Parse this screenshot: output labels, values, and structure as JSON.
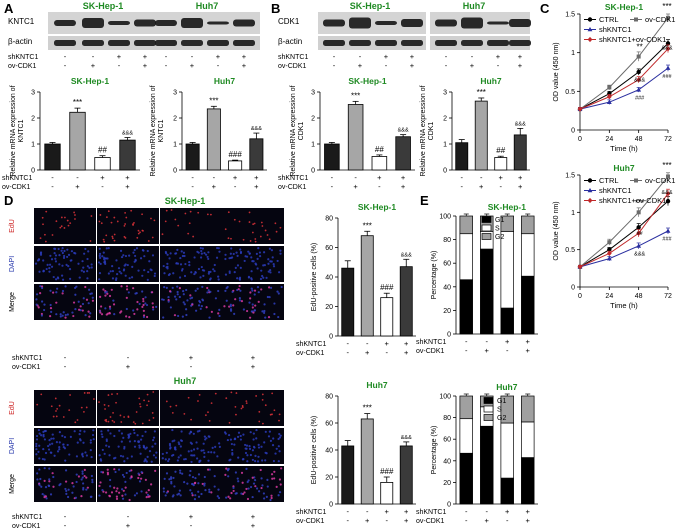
{
  "panels": {
    "A": "A",
    "B": "B",
    "C": "C",
    "D": "D",
    "E": "E"
  },
  "cells": {
    "sk": "SK-Hep-1",
    "huh": "Huh7"
  },
  "genes": {
    "kntc1": "KNTC1",
    "cdk1": "CDK1",
    "actin": "β-actin"
  },
  "rows": {
    "sh": "shKNTC1",
    "ov": "ov-CDK1"
  },
  "signs": {
    "minus": "-",
    "plus": "+"
  },
  "conditions": [
    {
      "sh": "-",
      "ov": "-"
    },
    {
      "sh": "-",
      "ov": "+"
    },
    {
      "sh": "+",
      "ov": "-"
    },
    {
      "sh": "+",
      "ov": "+"
    }
  ],
  "ylabels": {
    "kntc1_a": "Relative mRNA expression of",
    "kntc1_b": "KNTC1",
    "cdk1_a": "Relative mRNA expression of",
    "cdk1_b": "CDK1",
    "od": "OD value (450 nm)",
    "edu": "EdU-positive cells (%)",
    "pct": "Percentage (%)"
  },
  "xlabels": {
    "time": "Time (h)"
  },
  "legends": {
    "growth": [
      "CTRL",
      "ov-CDK1",
      "shKNTC1",
      "shKNTC1+ov-CDK1"
    ],
    "cycle": [
      "G1",
      "S",
      "G2"
    ]
  },
  "stains": {
    "edu": "EdU",
    "dapi": "DAPI",
    "merge": "Merge"
  },
  "colors": {
    "ctrl": "#000000",
    "ov": "#6b6b6b",
    "sh": "#2a2fa0",
    "combo": "#c0292b",
    "title": "#1f8a23",
    "edu": "#cc2222",
    "dapi": "#2233aa",
    "bar_ctrl": "#1a1a1a",
    "bar_ov": "#a6a6a6",
    "bar_sh": "#ffffff",
    "bar_combo": "#3a3a3a",
    "g1": "#000000",
    "s": "#ffffff",
    "g2": "#a0a0a0"
  },
  "chart_data": [
    {
      "id": "A1",
      "type": "bar",
      "title": "SK-Hep-1",
      "ylabel": "Relative mRNA expression of KNTC1",
      "ylim": [
        0,
        3
      ],
      "yticks": [
        0,
        1,
        2,
        3
      ],
      "values": [
        1.0,
        2.22,
        0.48,
        1.15
      ],
      "errors": [
        0.06,
        0.16,
        0.07,
        0.1
      ],
      "annotations": [
        "",
        "***",
        "##",
        "&&&"
      ]
    },
    {
      "id": "A2",
      "type": "bar",
      "title": "Huh7",
      "ylabel": "Relative mRNA expression of KNTC1",
      "ylim": [
        0,
        3
      ],
      "yticks": [
        0,
        1,
        2,
        3
      ],
      "values": [
        1.0,
        2.35,
        0.35,
        1.2
      ],
      "errors": [
        0.06,
        0.1,
        0.03,
        0.22
      ],
      "annotations": [
        "",
        "***",
        "###",
        "&&&"
      ]
    },
    {
      "id": "B1",
      "type": "bar",
      "title": "SK-Hep-1",
      "ylabel": "Relative mRNA expression of CDK1",
      "ylim": [
        0,
        3
      ],
      "yticks": [
        0,
        1,
        2,
        3
      ],
      "values": [
        1.0,
        2.52,
        0.52,
        1.28
      ],
      "errors": [
        0.06,
        0.12,
        0.06,
        0.08
      ],
      "annotations": [
        "",
        "***",
        "##",
        "&&&"
      ]
    },
    {
      "id": "B2",
      "type": "bar",
      "title": "Huh7",
      "ylabel": "Relative mRNA expression of CDK1",
      "ylim": [
        0,
        3
      ],
      "yticks": [
        0,
        1,
        2,
        3
      ],
      "values": [
        1.05,
        2.65,
        0.48,
        1.35
      ],
      "errors": [
        0.12,
        0.12,
        0.05,
        0.25
      ],
      "annotations": [
        "",
        "***",
        "##",
        "&&&"
      ]
    },
    {
      "id": "C1",
      "type": "line",
      "title": "SK-Hep-1",
      "xlabel": "Time (h)",
      "ylabel": "OD value (450 nm)",
      "x": [
        0,
        24,
        48,
        72
      ],
      "ylim": [
        0,
        1.5
      ],
      "yticks": [
        0,
        0.5,
        1,
        1.5
      ],
      "series": [
        {
          "name": "CTRL",
          "values": [
            0.27,
            0.47,
            0.75,
            1.12
          ],
          "errors": [
            0.02,
            0.03,
            0.04,
            0.05
          ]
        },
        {
          "name": "ov-CDK1",
          "values": [
            0.27,
            0.55,
            0.95,
            1.45
          ],
          "errors": [
            0.02,
            0.03,
            0.06,
            0.05
          ]
        },
        {
          "name": "shKNTC1",
          "values": [
            0.27,
            0.36,
            0.52,
            0.8
          ],
          "errors": [
            0.02,
            0.03,
            0.03,
            0.04
          ]
        },
        {
          "name": "shKNTC1+ov-CDK1",
          "values": [
            0.27,
            0.43,
            0.65,
            1.05
          ],
          "errors": [
            0.02,
            0.03,
            0.04,
            0.05
          ]
        }
      ],
      "annotations": [
        "**",
        "&&&",
        "###",
        "***",
        "&&&",
        "###"
      ]
    },
    {
      "id": "C2",
      "type": "line",
      "title": "Huh7",
      "xlabel": "Time (h)",
      "ylabel": "OD value (450 nm)",
      "x": [
        0,
        24,
        48,
        72
      ],
      "ylim": [
        0,
        1.5
      ],
      "yticks": [
        0,
        0.5,
        1,
        1.5
      ],
      "series": [
        {
          "name": "CTRL",
          "values": [
            0.27,
            0.5,
            0.8,
            1.15
          ],
          "errors": [
            0.02,
            0.03,
            0.05,
            0.06
          ]
        },
        {
          "name": "ov-CDK1",
          "values": [
            0.27,
            0.6,
            1.0,
            1.48
          ],
          "errors": [
            0.02,
            0.04,
            0.06,
            0.05
          ]
        },
        {
          "name": "shKNTC1",
          "values": [
            0.27,
            0.38,
            0.55,
            0.75
          ],
          "errors": [
            0.02,
            0.03,
            0.04,
            0.04
          ]
        },
        {
          "name": "shKNTC1+ov-CDK1",
          "values": [
            0.27,
            0.45,
            0.72,
            1.25
          ],
          "errors": [
            0.02,
            0.03,
            0.05,
            0.06
          ]
        }
      ],
      "annotations": [
        "***",
        "##",
        "&&&",
        "***",
        "&&&",
        "###"
      ]
    },
    {
      "id": "D1",
      "type": "bar",
      "title": "SK-Hep-1",
      "ylabel": "EdU-positive cells (%)",
      "ylim": [
        0,
        80
      ],
      "yticks": [
        0,
        20,
        40,
        60,
        80
      ],
      "values": [
        46,
        68,
        26,
        47
      ],
      "errors": [
        5,
        3,
        3,
        5
      ],
      "annotations": [
        "",
        "***",
        "###",
        "&&&"
      ]
    },
    {
      "id": "D2",
      "type": "bar",
      "title": "Huh7",
      "ylabel": "EdU-positive cells (%)",
      "ylim": [
        0,
        80
      ],
      "yticks": [
        0,
        20,
        40,
        60,
        80
      ],
      "values": [
        43,
        63,
        16,
        43
      ],
      "errors": [
        4,
        4,
        4,
        3
      ],
      "annotations": [
        "",
        "***",
        "###",
        "&&&"
      ]
    },
    {
      "id": "E1",
      "type": "bar",
      "title": "SK-Hep-1",
      "ylabel": "Percentage (%)",
      "ylim": [
        0,
        100
      ],
      "yticks": [
        0,
        20,
        40,
        60,
        80,
        100
      ],
      "series": [
        {
          "name": "G1",
          "values": [
            46,
            72,
            22,
            49
          ]
        },
        {
          "name": "S",
          "values": [
            39,
            15,
            65,
            36
          ]
        },
        {
          "name": "G2",
          "values": [
            15,
            13,
            13,
            15
          ]
        }
      ]
    },
    {
      "id": "E2",
      "type": "bar",
      "title": "Huh7",
      "ylabel": "Percentage (%)",
      "ylim": [
        0,
        100
      ],
      "yticks": [
        0,
        20,
        40,
        60,
        80,
        100
      ],
      "series": [
        {
          "name": "G1",
          "values": [
            47,
            72,
            24,
            43
          ]
        },
        {
          "name": "S",
          "values": [
            32,
            18,
            51,
            33
          ]
        },
        {
          "name": "G2",
          "values": [
            21,
            10,
            25,
            24
          ]
        }
      ]
    }
  ]
}
